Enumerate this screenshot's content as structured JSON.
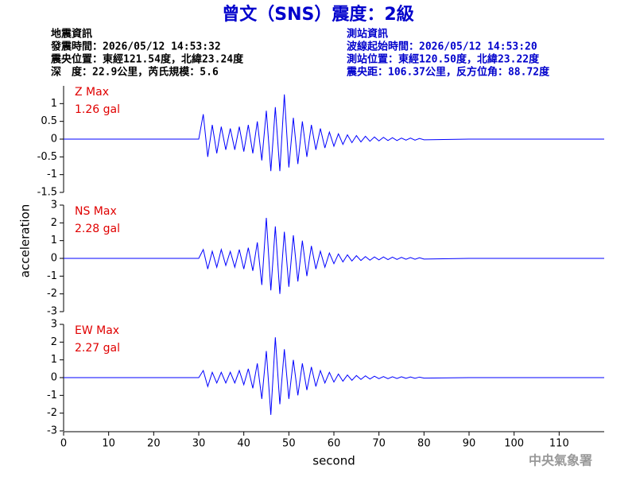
{
  "title": "曾文（SNS）震度：2級",
  "event_info": {
    "heading": "地震資訊",
    "lines": [
      "發震時間：2026/05/12 14:53:32",
      "震央位置：東經121.54度，北緯23.24度",
      "深　度：22.9公里，芮氏規模：5.6"
    ]
  },
  "station_info": {
    "heading": "測站資訊",
    "lines": [
      "波線起始時間：2026/05/12 14:53:20",
      "測站位置：東經120.50度，北緯23.22度",
      "震央距：106.37公里，反方位角：88.72度"
    ]
  },
  "x_label": "second",
  "y_label": "acceleration",
  "footer": "中央氣象署",
  "chart_data": [
    {
      "type": "line",
      "annotations": [
        "Z Max",
        "1.26 gal"
      ],
      "x": [
        0,
        10,
        20,
        30,
        31,
        32,
        33,
        34,
        35,
        36,
        37,
        38,
        39,
        40,
        41,
        42,
        43,
        44,
        45,
        46,
        47,
        48,
        49,
        50,
        51,
        52,
        53,
        54,
        55,
        56,
        57,
        58,
        59,
        60,
        61,
        62,
        63,
        64,
        65,
        66,
        67,
        68,
        69,
        70,
        71,
        72,
        73,
        74,
        75,
        76,
        77,
        78,
        79,
        80,
        90,
        100,
        110,
        120
      ],
      "series": [
        {
          "color": "#0000ff",
          "values": [
            0,
            0,
            0,
            0,
            0.7,
            -0.5,
            0.4,
            -0.4,
            0.35,
            -0.3,
            0.3,
            -0.3,
            0.35,
            -0.35,
            0.4,
            -0.4,
            0.5,
            -0.6,
            0.8,
            -0.9,
            0.9,
            -0.9,
            1.26,
            -0.8,
            0.6,
            -0.7,
            0.5,
            -0.5,
            0.4,
            -0.3,
            0.3,
            -0.25,
            0.2,
            -0.2,
            0.15,
            -0.15,
            0.12,
            -0.1,
            0.1,
            -0.08,
            0.08,
            -0.06,
            0.06,
            -0.05,
            0.05,
            -0.04,
            0.04,
            -0.04,
            0.03,
            -0.03,
            0.03,
            -0.03,
            0.02,
            -0.02,
            0,
            0,
            0,
            0
          ]
        }
      ],
      "xlim": [
        0,
        120
      ],
      "ylim": [
        -1.5,
        1.5
      ],
      "yticks": [
        -1.5,
        -1,
        -0.5,
        0,
        0.5,
        1
      ]
    },
    {
      "type": "line",
      "annotations": [
        "NS Max",
        "2.28 gal"
      ],
      "x": [
        0,
        10,
        20,
        30,
        31,
        32,
        33,
        34,
        35,
        36,
        37,
        38,
        39,
        40,
        41,
        42,
        43,
        44,
        45,
        46,
        47,
        48,
        49,
        50,
        51,
        52,
        53,
        54,
        55,
        56,
        57,
        58,
        59,
        60,
        61,
        62,
        63,
        64,
        65,
        66,
        67,
        68,
        69,
        70,
        71,
        72,
        73,
        74,
        75,
        76,
        77,
        78,
        79,
        80,
        90,
        100,
        110,
        120
      ],
      "series": [
        {
          "color": "#0000ff",
          "values": [
            0,
            0,
            0,
            0,
            0.5,
            -0.6,
            0.4,
            -0.5,
            0.5,
            -0.4,
            0.4,
            -0.5,
            0.5,
            -0.6,
            0.6,
            -0.7,
            0.9,
            -1.5,
            2.28,
            -1.8,
            1.8,
            -2.0,
            1.5,
            -1.6,
            1.3,
            -1.3,
            1.0,
            -1.0,
            0.7,
            -0.6,
            0.4,
            -0.5,
            0.3,
            -0.3,
            0.25,
            -0.2,
            0.2,
            -0.15,
            0.15,
            -0.12,
            0.1,
            -0.1,
            0.08,
            -0.08,
            0.08,
            -0.07,
            0.07,
            -0.06,
            0.06,
            -0.05,
            0.05,
            -0.05,
            0.04,
            -0.04,
            0,
            0,
            0,
            0
          ]
        }
      ],
      "xlim": [
        0,
        120
      ],
      "ylim": [
        -3,
        3
      ],
      "yticks": [
        -3,
        -2,
        -1,
        0,
        1,
        2,
        3
      ]
    },
    {
      "type": "line",
      "annotations": [
        "EW Max",
        "2.27 gal"
      ],
      "x": [
        0,
        10,
        20,
        30,
        31,
        32,
        33,
        34,
        35,
        36,
        37,
        38,
        39,
        40,
        41,
        42,
        43,
        44,
        45,
        46,
        47,
        48,
        49,
        50,
        51,
        52,
        53,
        54,
        55,
        56,
        57,
        58,
        59,
        60,
        61,
        62,
        63,
        64,
        65,
        66,
        67,
        68,
        69,
        70,
        71,
        72,
        73,
        74,
        75,
        76,
        77,
        78,
        79,
        80,
        90,
        100,
        110,
        120
      ],
      "series": [
        {
          "color": "#0000ff",
          "values": [
            0,
            0,
            0,
            0,
            0.4,
            -0.5,
            0.3,
            -0.3,
            0.3,
            -0.3,
            0.3,
            -0.3,
            0.4,
            -0.4,
            0.5,
            -0.6,
            0.8,
            -1.2,
            1.5,
            -2.1,
            2.27,
            -1.5,
            1.6,
            -1.2,
            1.0,
            -1.0,
            0.8,
            -0.7,
            0.6,
            -0.5,
            0.4,
            -0.3,
            0.3,
            -0.25,
            0.2,
            -0.2,
            0.15,
            -0.15,
            0.12,
            -0.1,
            0.1,
            -0.08,
            0.08,
            -0.06,
            0.06,
            -0.06,
            0.05,
            -0.05,
            0.05,
            -0.04,
            0.04,
            -0.04,
            0.03,
            -0.03,
            0,
            0,
            0,
            0
          ]
        }
      ],
      "xlim": [
        0,
        120
      ],
      "ylim": [
        -3,
        3
      ],
      "yticks": [
        -3,
        -2,
        -1,
        0,
        1,
        2,
        3
      ],
      "xticks": [
        0,
        10,
        20,
        30,
        40,
        50,
        60,
        70,
        80,
        90,
        100,
        110
      ]
    }
  ]
}
